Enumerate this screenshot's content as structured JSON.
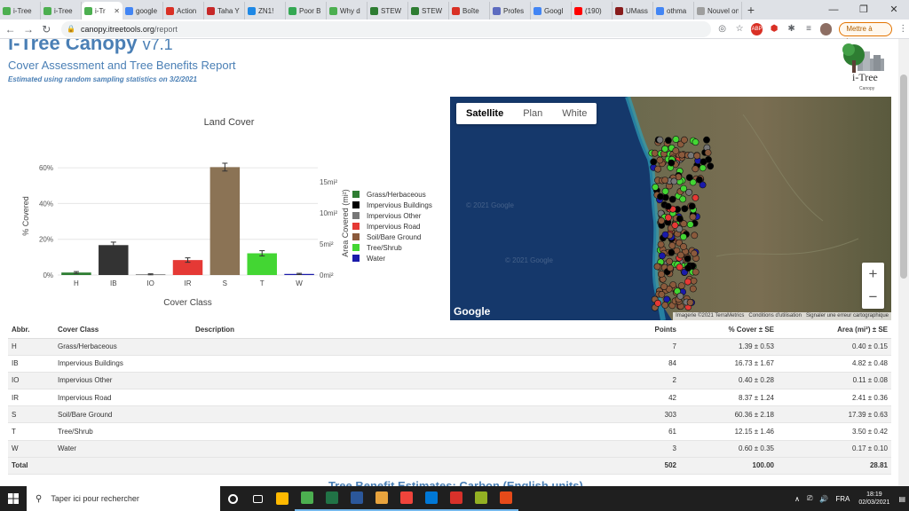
{
  "browser": {
    "tabs": [
      {
        "label": "i-Tree",
        "color": "#4caf50"
      },
      {
        "label": "i-Tree",
        "color": "#4caf50"
      },
      {
        "label": "i-Tr",
        "color": "#4caf50",
        "active": true
      },
      {
        "label": "google",
        "color": "#4285f4"
      },
      {
        "label": "Action",
        "color": "#d93025"
      },
      {
        "label": "Taha Y",
        "color": "#c62828"
      },
      {
        "label": "ZN1!",
        "color": "#1e88e5"
      },
      {
        "label": "Poor B",
        "color": "#34a853"
      },
      {
        "label": "Why d",
        "color": "#4caf50"
      },
      {
        "label": "STEW",
        "color": "#2e7d32"
      },
      {
        "label": "STEW",
        "color": "#2e7d32"
      },
      {
        "label": "Boîte",
        "color": "#d93025"
      },
      {
        "label": "Profes",
        "color": "#5c6bc0"
      },
      {
        "label": "Googl",
        "color": "#4285f4"
      },
      {
        "label": "(190)",
        "color": "#ff0000"
      },
      {
        "label": "UMass",
        "color": "#881c1c"
      },
      {
        "label": "othma",
        "color": "#4285f4"
      },
      {
        "label": "Nouvel ong",
        "color": "#9e9e9e"
      }
    ],
    "url_domain": "canopy.itreetools.org",
    "url_path": "/report",
    "update_label": "Mettre à jour"
  },
  "page": {
    "app_title": "i-Tree Canopy",
    "app_version": "v7.1",
    "report_title": "Cover Assessment and Tree Benefits Report",
    "report_subtitle": "Estimated using random sampling statistics on 3/2/2021",
    "logo_text": "i-Tree",
    "logo_sub": "Canopy",
    "bottom_heading": "Tree Benefit Estimates: Carbon (English units)"
  },
  "chart_data": {
    "type": "bar",
    "title": "Land Cover",
    "xlabel": "Cover Class",
    "ylabel": "% Covered",
    "y2label": "Area Covered (mi²)",
    "categories": [
      "H",
      "IB",
      "IO",
      "IR",
      "S",
      "T",
      "W"
    ],
    "values": [
      1.39,
      16.73,
      0.4,
      8.37,
      60.36,
      12.15,
      0.6
    ],
    "errors": [
      0.53,
      1.67,
      0.28,
      1.24,
      2.18,
      1.46,
      0.35
    ],
    "colors": [
      "#2e7d32",
      "#333333",
      "#777777",
      "#e53935",
      "#8b7355",
      "#43d633",
      "#1a1aaa"
    ],
    "ylim": [
      0,
      66
    ],
    "yticks": [
      "0%",
      "20%",
      "40%",
      "60%"
    ],
    "y2ticks": [
      "0mi²",
      "5mi²",
      "10mi²",
      "15mi²"
    ],
    "legend_position": "right",
    "legend": [
      {
        "label": "Grass/Herbaceous",
        "color": "#2e7d32"
      },
      {
        "label": "Impervious Buildings",
        "color": "#000000"
      },
      {
        "label": "Impervious Other",
        "color": "#777777"
      },
      {
        "label": "Impervious Road",
        "color": "#e53935"
      },
      {
        "label": "Soil/Bare Ground",
        "color": "#8b5a3c"
      },
      {
        "label": "Tree/Shrub",
        "color": "#43d633"
      },
      {
        "label": "Water",
        "color": "#1a1aaa"
      }
    ]
  },
  "map": {
    "tabs": [
      "Satellite",
      "Plan",
      "White"
    ],
    "active_tab": "Satellite",
    "google_label": "Google",
    "watermark": "© 2021 Google",
    "credits": [
      "Imagerie ©2021 TerraMetrics",
      "Conditions d'utilisation",
      "Signaler une erreur cartographique"
    ],
    "zoom_in": "+",
    "zoom_out": "−"
  },
  "table": {
    "headers": [
      "Abbr.",
      "Cover Class",
      "Description",
      "Points",
      "% Cover ± SE",
      "Area (mi²) ± SE"
    ],
    "rows": [
      [
        "H",
        "Grass/Herbaceous",
        "",
        "7",
        "1.39 ± 0.53",
        "0.40 ± 0.15"
      ],
      [
        "IB",
        "Impervious Buildings",
        "",
        "84",
        "16.73 ± 1.67",
        "4.82 ± 0.48"
      ],
      [
        "IO",
        "Impervious Other",
        "",
        "2",
        "0.40 ± 0.28",
        "0.11 ± 0.08"
      ],
      [
        "IR",
        "Impervious Road",
        "",
        "42",
        "8.37 ± 1.24",
        "2.41 ± 0.36"
      ],
      [
        "S",
        "Soil/Bare Ground",
        "",
        "303",
        "60.36 ± 2.18",
        "17.39 ± 0.63"
      ],
      [
        "T",
        "Tree/Shrub",
        "",
        "61",
        "12.15 ± 1.46",
        "3.50 ± 0.42"
      ],
      [
        "W",
        "Water",
        "",
        "3",
        "0.60 ± 0.35",
        "0.17 ± 0.10"
      ]
    ],
    "total": [
      "Total",
      "",
      "",
      "502",
      "100.00",
      "28.81"
    ]
  },
  "taskbar": {
    "search_placeholder": "Taper ici pour rechercher",
    "lang": "FRA",
    "time": "18:19",
    "date": "02/03/2021",
    "apps": [
      {
        "name": "cortana",
        "color": "#ffffff"
      },
      {
        "name": "taskview",
        "color": "#ffffff"
      },
      {
        "name": "store",
        "color": "#ffb900"
      },
      {
        "name": "chrome",
        "color": "#4caf50",
        "running": true
      },
      {
        "name": "excel",
        "color": "#217346",
        "running": true
      },
      {
        "name": "word",
        "color": "#2b579a",
        "running": true
      },
      {
        "name": "files",
        "color": "#e8a33d",
        "running": true
      },
      {
        "name": "anydesk",
        "color": "#ef443b",
        "running": true
      },
      {
        "name": "edge",
        "color": "#0078d7",
        "running": true
      },
      {
        "name": "acrobat",
        "color": "#d7312a",
        "running": true
      },
      {
        "name": "qgis",
        "color": "#93b023",
        "running": true
      },
      {
        "name": "photos",
        "color": "#e64a19",
        "running": true
      }
    ]
  }
}
